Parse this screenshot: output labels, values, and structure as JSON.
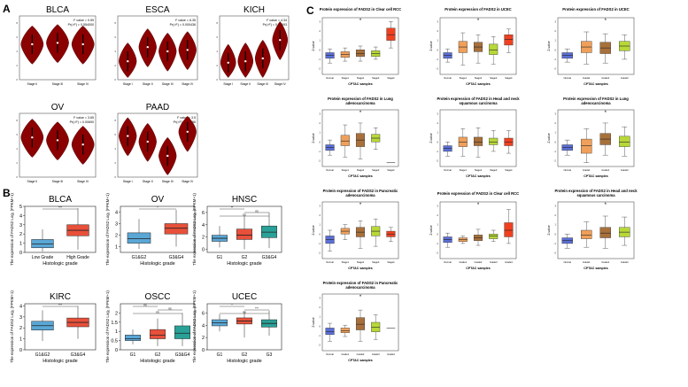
{
  "panel_labels": [
    "A",
    "B",
    "C"
  ],
  "colors": {
    "violin": "#8b0000",
    "box_low": "#5aa7d6",
    "box_high": "#e8503a",
    "box_mid": "#2aa198",
    "c_normal": "#5b6fd6",
    "c_stage1": "#f0a05a",
    "c_stage2": "#a8703a",
    "c_stage3": "#b8d838",
    "c_stage4": "#f04020"
  },
  "chart_data": [
    {
      "type": "violin",
      "panel": "A",
      "title": "BLCA",
      "stats": [
        "F value = 0.59",
        "Pr(>F) = 0.554000"
      ],
      "categories": [
        "Stage II",
        "Stage III",
        "Stage IV"
      ],
      "medians": [
        5.0,
        5.2,
        5.0
      ]
    },
    {
      "type": "violin",
      "panel": "A",
      "title": "ESCA",
      "stats": [
        "F value = 6.35",
        "Pr(>F) = 0.000436"
      ],
      "categories": [
        "Stage I",
        "Stage II",
        "Stage III",
        "Stage IV"
      ],
      "medians": [
        2.6,
        4.6,
        4.0,
        4.2
      ]
    },
    {
      "type": "violin",
      "panel": "A",
      "title": "KICH",
      "stats": [
        "F value = 4.34",
        "Pr(>F) = 0.00693"
      ],
      "categories": [
        "Stage I",
        "Stage II",
        "Stage III",
        "Stage IV"
      ],
      "medians": [
        2.4,
        2.6,
        3.0,
        5.6
      ]
    },
    {
      "type": "violin",
      "panel": "A",
      "title": "OV",
      "stats": [
        "F value = 3.65",
        "Pr(>F) = 0.00690"
      ],
      "categories": [
        "Stage II",
        "Stage III",
        "Stage IV"
      ],
      "medians": [
        5.6,
        5.2,
        4.6
      ]
    },
    {
      "type": "violin",
      "panel": "A",
      "title": "PAAD",
      "stats": [
        "F value = 3.5",
        "Pr(>F) = 0.0156"
      ],
      "categories": [
        "Stage I",
        "Stage II",
        "Stage III",
        "Stage IV"
      ],
      "medians": [
        5.8,
        5.0,
        3.0,
        6.4
      ]
    },
    {
      "type": "box",
      "panel": "B",
      "title": "BLCA",
      "xlabel": "Histologic grade",
      "ylabel": "The expression of FADS2 Log₂ (FPKM+1)",
      "categories": [
        "Low Grade",
        "High Grade"
      ],
      "yticks": [
        0,
        1,
        2,
        3,
        4,
        5
      ],
      "ylim": [
        0,
        5
      ],
      "boxes": [
        {
          "q1": 0.5,
          "median": 0.9,
          "q3": 1.4,
          "low": 0.1,
          "high": 2.5
        },
        {
          "q1": 1.8,
          "median": 2.4,
          "q3": 3.0,
          "low": 0.3,
          "high": 4.8
        }
      ],
      "sig": [
        {
          "from": 0,
          "to": 1,
          "label": "***"
        }
      ]
    },
    {
      "type": "box",
      "panel": "B",
      "title": "OV",
      "xlabel": "Histologic grade",
      "ylabel": "The expression of FADS2 Log₂ (FPKM+1)",
      "categories": [
        "G1&G2",
        "G3&G4"
      ],
      "yticks": [
        1,
        2,
        3,
        4
      ],
      "ylim": [
        0.5,
        4.5
      ],
      "boxes": [
        {
          "q1": 1.3,
          "median": 1.7,
          "q3": 2.2,
          "low": 0.8,
          "high": 3.4
        },
        {
          "q1": 2.1,
          "median": 2.6,
          "q3": 3.0,
          "low": 1.0,
          "high": 4.2
        }
      ],
      "sig": [
        {
          "from": 0,
          "to": 1,
          "label": "*"
        }
      ]
    },
    {
      "type": "box",
      "panel": "B",
      "title": "HNSC",
      "xlabel": "Histologic grade",
      "ylabel": "The expression of FADS2 Log₂ (FPKM+1)",
      "categories": [
        "G1",
        "G2",
        "G3&G4"
      ],
      "yticks": [
        0,
        2,
        4,
        6
      ],
      "ylim": [
        -0.5,
        7
      ],
      "boxes": [
        {
          "q1": 1.3,
          "median": 1.8,
          "q3": 2.3,
          "low": 0.3,
          "high": 3.8
        },
        {
          "q1": 1.6,
          "median": 2.3,
          "q3": 3.3,
          "low": 0.0,
          "high": 5.5
        },
        {
          "q1": 1.9,
          "median": 2.8,
          "q3": 3.8,
          "low": 0.2,
          "high": 6.0
        }
      ],
      "sig": [
        {
          "from": 0,
          "to": 1,
          "label": "**"
        },
        {
          "from": 1,
          "to": 2,
          "label": "ns"
        },
        {
          "from": 0,
          "to": 2,
          "label": "ns"
        }
      ]
    },
    {
      "type": "box",
      "panel": "B",
      "title": "KIRC",
      "xlabel": "Histologic grade",
      "ylabel": "The expression of FADS2 Log₂ (FPKM+1)",
      "categories": [
        "G1&G2",
        "G3&G4"
      ],
      "yticks": [
        0,
        1,
        2,
        3,
        4
      ],
      "ylim": [
        0,
        4.2
      ],
      "boxes": [
        {
          "q1": 1.8,
          "median": 2.2,
          "q3": 2.6,
          "low": 0.8,
          "high": 3.6
        },
        {
          "q1": 2.1,
          "median": 2.5,
          "q3": 2.9,
          "low": 1.0,
          "high": 4.0
        }
      ],
      "sig": [
        {
          "from": 0,
          "to": 1,
          "label": "***"
        }
      ]
    },
    {
      "type": "box",
      "panel": "B",
      "title": "OSCC",
      "xlabel": "Histologic grade",
      "ylabel": "The expression of FADS2 Log₂ (FPKM+1)",
      "categories": [
        "G1",
        "G2",
        "G3&G4"
      ],
      "yticks": [
        0.0,
        0.5,
        1.0,
        1.5,
        2.0
      ],
      "ylim": [
        0,
        2.5
      ],
      "boxes": [
        {
          "q1": 0.5,
          "median": 0.6,
          "q3": 0.8,
          "low": 0.3,
          "high": 1.1
        },
        {
          "q1": 0.6,
          "median": 0.8,
          "q3": 1.1,
          "low": 0.2,
          "high": 1.7
        },
        {
          "q1": 0.6,
          "median": 0.9,
          "q3": 1.3,
          "low": 0.2,
          "high": 2.0
        }
      ],
      "sig": [
        {
          "from": 0,
          "to": 1,
          "label": "ns"
        },
        {
          "from": 1,
          "to": 2,
          "label": "ns"
        },
        {
          "from": 0,
          "to": 2,
          "label": "ns"
        }
      ]
    },
    {
      "type": "box",
      "panel": "B",
      "title": "UCEC",
      "xlabel": "Histologic grade",
      "ylabel": "The expression of FADS2 Log₂ (FPKM+1)",
      "categories": [
        "G1",
        "G2",
        "G3"
      ],
      "yticks": [
        0,
        2,
        4,
        6
      ],
      "ylim": [
        0,
        7.5
      ],
      "boxes": [
        {
          "q1": 3.9,
          "median": 4.4,
          "q3": 4.9,
          "low": 3.0,
          "high": 5.8
        },
        {
          "q1": 4.2,
          "median": 4.7,
          "q3": 5.2,
          "low": 2.0,
          "high": 6.2
        },
        {
          "q1": 3.7,
          "median": 4.3,
          "q3": 4.9,
          "low": 2.3,
          "high": 6.4
        }
      ],
      "sig": [
        {
          "from": 0,
          "to": 1,
          "label": "*"
        },
        {
          "from": 1,
          "to": 2,
          "label": "***"
        },
        {
          "from": 0,
          "to": 2,
          "label": "ns"
        }
      ]
    },
    {
      "type": "box",
      "panel": "C",
      "title": "Protein expression of FADS2 in Clear cell RCC",
      "xlabel": "CPTAC samples",
      "ylabel": "Z-value",
      "star_index": 2,
      "categories": [
        "Normal",
        "Stage1",
        "Stage2",
        "Stage3",
        "Stage4"
      ],
      "colors": [
        "#5b6fd6",
        "#f0a05a",
        "#a8703a",
        "#b8d838",
        "#f04020"
      ],
      "boxes": [
        {
          "q1": -0.9,
          "median": -0.6,
          "q3": -0.3,
          "low": -1.4,
          "high": 0.1
        },
        {
          "q1": -0.8,
          "median": -0.5,
          "q3": -0.2,
          "low": -1.2,
          "high": 0.2
        },
        {
          "q1": -0.7,
          "median": -0.4,
          "q3": 0.0,
          "low": -1.2,
          "high": 0.4
        },
        {
          "q1": -0.7,
          "median": -0.4,
          "q3": -0.1,
          "low": -1.0,
          "high": 0.3
        },
        {
          "q1": 1.0,
          "median": 1.6,
          "q3": 2.3,
          "low": 0.2,
          "high": 3.0
        }
      ]
    },
    {
      "type": "box",
      "panel": "C",
      "title": "Protein expression of FADS2 in UCEC",
      "xlabel": "CPTAC samples",
      "ylabel": "Z-value",
      "star_index": 2,
      "categories": [
        "Normal",
        "Stage1",
        "Stage2",
        "Stage3",
        "Stage4"
      ],
      "colors": [
        "#5b6fd6",
        "#f0a05a",
        "#a8703a",
        "#b8d838",
        "#f04020"
      ],
      "boxes": [
        {
          "q1": -0.9,
          "median": -0.6,
          "q3": -0.3,
          "low": -1.3,
          "high": 0.1
        },
        {
          "q1": -0.3,
          "median": 0.3,
          "q3": 0.9,
          "low": -1.6,
          "high": 1.8
        },
        {
          "q1": -0.2,
          "median": 0.3,
          "q3": 0.8,
          "low": -1.4,
          "high": 1.6
        },
        {
          "q1": -0.5,
          "median": 0.0,
          "q3": 0.6,
          "low": -1.5,
          "high": 1.4
        },
        {
          "q1": 0.5,
          "median": 1.1,
          "q3": 1.6,
          "low": -0.3,
          "high": 2.2
        }
      ]
    },
    {
      "type": "box",
      "panel": "C",
      "title": "Protein expression of FADS2 in UCEC",
      "xlabel": "CPTAC samples",
      "ylabel": "Z-value",
      "star_index": 2,
      "categories": [
        "Normal",
        "Grade1",
        "Grade2",
        "Grade3"
      ],
      "colors": [
        "#5b6fd6",
        "#f0a05a",
        "#a8703a",
        "#b8d838"
      ],
      "boxes": [
        {
          "q1": -0.9,
          "median": -0.6,
          "q3": -0.3,
          "low": -1.3,
          "high": 0.1
        },
        {
          "q1": -0.3,
          "median": 0.3,
          "q3": 0.9,
          "low": -1.5,
          "high": 1.9
        },
        {
          "q1": -0.4,
          "median": 0.2,
          "q3": 0.8,
          "low": -1.4,
          "high": 1.7
        },
        {
          "q1": -0.1,
          "median": 0.4,
          "q3": 0.9,
          "low": -1.0,
          "high": 1.6
        }
      ]
    },
    {
      "type": "box",
      "panel": "C",
      "title": "Protein expression of FADS2 in Lung adenocarcinoma",
      "xlabel": "CPTAC samples",
      "ylabel": "Z-value",
      "star_index": 2,
      "categories": [
        "Normal",
        "Stage1",
        "Stage2",
        "Stage3",
        "Stage4"
      ],
      "colors": [
        "#5b6fd6",
        "#f0a05a",
        "#a8703a",
        "#b8d838",
        "#f04020"
      ],
      "boxes": [
        {
          "q1": -0.9,
          "median": -0.6,
          "q3": -0.3,
          "low": -1.4,
          "high": 0.2
        },
        {
          "q1": -0.4,
          "median": 0.1,
          "q3": 0.7,
          "low": -1.6,
          "high": 1.8
        },
        {
          "q1": -0.5,
          "median": 0.2,
          "q3": 0.9,
          "low": -1.8,
          "high": 2.0
        },
        {
          "q1": 0.0,
          "median": 0.4,
          "q3": 0.8,
          "low": -0.8,
          "high": 1.5
        },
        {
          "q1": -2.2,
          "median": -2.2,
          "q3": -2.2,
          "low": -2.2,
          "high": -2.2
        }
      ]
    },
    {
      "type": "box",
      "panel": "C",
      "title": "Protein expression of FADS2 in Head and neck squamous carcinoma",
      "xlabel": "CPTAC samples",
      "ylabel": "Z-value",
      "star_index": -1,
      "categories": [
        "Normal",
        "Stage1",
        "Stage2",
        "Stage3",
        "Stage4"
      ],
      "colors": [
        "#5b6fd6",
        "#f0a05a",
        "#a8703a",
        "#b8d838",
        "#f04020"
      ],
      "boxes": [
        {
          "q1": -1.0,
          "median": -0.7,
          "q3": -0.4,
          "low": -1.5,
          "high": 0.0
        },
        {
          "q1": -0.5,
          "median": 0.0,
          "q3": 0.5,
          "low": -1.5,
          "high": 1.4
        },
        {
          "q1": -0.4,
          "median": 0.0,
          "q3": 0.5,
          "low": -1.6,
          "high": 1.5
        },
        {
          "q1": -0.3,
          "median": 0.0,
          "q3": 0.4,
          "low": -1.0,
          "high": 1.2
        },
        {
          "q1": -0.4,
          "median": 0.0,
          "q3": 0.4,
          "low": -1.2,
          "high": 1.2
        }
      ]
    },
    {
      "type": "box",
      "panel": "C",
      "title": "Protein expression of FADS2 in Lung adenocarcinoma",
      "xlabel": "CPTAC samples",
      "ylabel": "Z-value",
      "star_index": 2,
      "categories": [
        "Normal",
        "Grade1",
        "Grade2",
        "Grade3"
      ],
      "colors": [
        "#5b6fd6",
        "#f0a05a",
        "#a8703a",
        "#b8d838"
      ],
      "boxes": [
        {
          "q1": -0.9,
          "median": -0.6,
          "q3": -0.3,
          "low": -1.4,
          "high": 0.2
        },
        {
          "q1": -1.2,
          "median": -0.4,
          "q3": 0.3,
          "low": -2.2,
          "high": 1.4
        },
        {
          "q1": -0.3,
          "median": 0.3,
          "q3": 0.9,
          "low": -1.4,
          "high": 2.0
        },
        {
          "q1": -0.5,
          "median": 0.0,
          "q3": 0.6,
          "low": -1.5,
          "high": 1.6
        }
      ]
    },
    {
      "type": "box",
      "panel": "C",
      "title": "Protein expression of FADS2 in Pancreatic adenocarcinoma",
      "xlabel": "CPTAC samples",
      "ylabel": "Z-value",
      "star_index": 2,
      "categories": [
        "Normal",
        "Stage1",
        "Stage2",
        "Stage3",
        "Stage4"
      ],
      "colors": [
        "#5b6fd6",
        "#f0a05a",
        "#a8703a",
        "#b8d838",
        "#f04020"
      ],
      "boxes": [
        {
          "q1": -1.0,
          "median": -0.6,
          "q3": -0.2,
          "low": -1.8,
          "high": 0.4
        },
        {
          "q1": 0.0,
          "median": 0.3,
          "q3": 0.6,
          "low": -0.6,
          "high": 1.0
        },
        {
          "q1": -0.3,
          "median": 0.2,
          "q3": 0.7,
          "low": -1.5,
          "high": 1.4
        },
        {
          "q1": -0.2,
          "median": 0.3,
          "q3": 0.8,
          "low": -1.3,
          "high": 1.6
        },
        {
          "q1": -0.3,
          "median": 0.0,
          "q3": 0.3,
          "low": -0.8,
          "high": 0.7
        }
      ]
    },
    {
      "type": "box",
      "panel": "C",
      "title": "Protein expression of FADS2 in Clear cell RCC",
      "xlabel": "CPTAC samples",
      "ylabel": "Z-value",
      "star_index": 2,
      "categories": [
        "Normal",
        "Grade1",
        "Grade2",
        "Grade3",
        "Grade4"
      ],
      "colors": [
        "#5b6fd6",
        "#f0a05a",
        "#a8703a",
        "#b8d838",
        "#f04020"
      ],
      "boxes": [
        {
          "q1": -0.9,
          "median": -0.6,
          "q3": -0.3,
          "low": -1.4,
          "high": 0.1
        },
        {
          "q1": -0.8,
          "median": -0.6,
          "q3": -0.4,
          "low": -1.0,
          "high": -0.2
        },
        {
          "q1": -0.7,
          "median": -0.4,
          "q3": -0.1,
          "low": -1.2,
          "high": 0.5
        },
        {
          "q1": -0.5,
          "median": -0.2,
          "q3": 0.0,
          "low": -0.8,
          "high": 0.4
        },
        {
          "q1": -0.3,
          "median": 0.4,
          "q3": 1.2,
          "low": -1.0,
          "high": 2.6
        }
      ]
    },
    {
      "type": "box",
      "panel": "C",
      "title": "Protein expression of FADS2 in Head and neck squamous carcinoma",
      "xlabel": "CPTAC samples",
      "ylabel": "Z-value",
      "star_index": 2,
      "categories": [
        "Normal",
        "Grade1",
        "Grade2",
        "Grade3"
      ],
      "colors": [
        "#5b6fd6",
        "#f0a05a",
        "#a8703a",
        "#b8d838"
      ],
      "boxes": [
        {
          "q1": -1.0,
          "median": -0.7,
          "q3": -0.4,
          "low": -1.5,
          "high": 0.0
        },
        {
          "q1": -0.5,
          "median": -0.1,
          "q3": 0.4,
          "low": -1.4,
          "high": 1.3
        },
        {
          "q1": -0.4,
          "median": 0.1,
          "q3": 0.7,
          "low": -1.5,
          "high": 1.9
        },
        {
          "q1": -0.3,
          "median": 0.2,
          "q3": 0.7,
          "low": -1.2,
          "high": 1.8
        }
      ]
    },
    {
      "type": "box",
      "panel": "C",
      "title": "Protein expression of FADS2 in Pancreatic adenocarcinoma",
      "xlabel": "CPTAC samples",
      "ylabel": "Z-value",
      "star_index": 2,
      "categories": [
        "Normal",
        "Grade1",
        "Grade2",
        "Grade3",
        "Grade4"
      ],
      "colors": [
        "#5b6fd6",
        "#f0a05a",
        "#a8703a",
        "#b8d838",
        "#f04020"
      ],
      "boxes": [
        {
          "q1": -0.9,
          "median": -0.6,
          "q3": -0.2,
          "low": -1.6,
          "high": 0.3
        },
        {
          "q1": -0.7,
          "median": -0.5,
          "q3": -0.2,
          "low": -1.1,
          "high": 0.1
        },
        {
          "q1": -0.4,
          "median": 0.2,
          "q3": 0.9,
          "low": -1.6,
          "high": 1.7
        },
        {
          "q1": -0.6,
          "median": -0.1,
          "q3": 0.4,
          "low": -1.4,
          "high": 1.2
        },
        {
          "q1": -0.2,
          "median": -0.2,
          "q3": -0.2,
          "low": -0.2,
          "high": -0.2
        }
      ]
    }
  ]
}
